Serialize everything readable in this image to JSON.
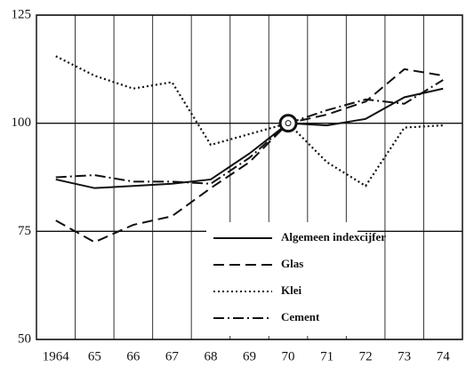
{
  "chart_data": {
    "type": "line",
    "categories": [
      "1964",
      "65",
      "66",
      "67",
      "68",
      "69",
      "70",
      "71",
      "72",
      "73",
      "74"
    ],
    "series": [
      {
        "name": "Algemeen indexcijfer",
        "color": "#111111",
        "dash": "none",
        "values": [
          87,
          85,
          85.5,
          86,
          87,
          93,
          100,
          99.5,
          101,
          106,
          108
        ]
      },
      {
        "name": "Glas",
        "color": "#111111",
        "dash": "12,6",
        "values": [
          77.5,
          72.5,
          76.5,
          78.5,
          85,
          91,
          100,
          102,
          105,
          112.5,
          111
        ]
      },
      {
        "name": "Klei",
        "color": "#111111",
        "dash": "2,3",
        "values": [
          115.5,
          111,
          108,
          109.5,
          95,
          97.5,
          100,
          91,
          85.5,
          99,
          99.5
        ]
      },
      {
        "name": "Cement",
        "color": "#111111",
        "dash": "12,4,2,4",
        "values": [
          87.5,
          88,
          86.5,
          86.5,
          86,
          92,
          100,
          103,
          105.5,
          104.5,
          110
        ]
      }
    ],
    "highlight": "70",
    "ylim": [
      50,
      125
    ],
    "yticks": [
      50,
      75,
      100,
      125
    ],
    "grid": true,
    "legend": "lower right"
  }
}
